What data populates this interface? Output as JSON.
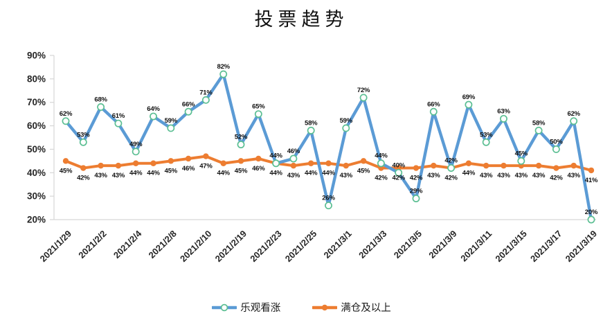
{
  "chart": {
    "title": "投票趋势"
  },
  "chart_data": {
    "type": "line",
    "title": "投票趋势",
    "xlabel": "",
    "ylabel": "",
    "ylim": [
      20,
      90
    ],
    "y_tick_labels": [
      "90%",
      "80%",
      "70%",
      "60%",
      "50%",
      "40%",
      "30%",
      "20%"
    ],
    "grid": false,
    "legend_position": "bottom",
    "axis_color": "#d6d6d6",
    "data_label_format": "{v}%",
    "x_tick_every": 2,
    "x_tick_labels": [
      "2021/1/29",
      "2021/2/2",
      "2021/2/4",
      "2021/2/8",
      "2021/2/10",
      "2021/2/19",
      "2021/2/23",
      "2021/2/25",
      "2021/3/1",
      "2021/3/3",
      "2021/3/5",
      "2021/3/9",
      "2021/3/11",
      "2021/3/15",
      "2021/3/17",
      "2021/3/19"
    ],
    "series": [
      {
        "name": "乐观看涨",
        "color": "#5b9bd5",
        "marker": "open-circle",
        "marker_fill": "#ffffff",
        "marker_stroke": "#5cbf93",
        "label_position": "above",
        "values": [
          62,
          53,
          68,
          61,
          49,
          64,
          59,
          66,
          71,
          82,
          52,
          65,
          44,
          46,
          58,
          26,
          59,
          72,
          44,
          40,
          29,
          66,
          42,
          69,
          53,
          63,
          45,
          58,
          50,
          62,
          20
        ]
      },
      {
        "name": "满仓及以上",
        "color": "#ed7d31",
        "marker": "filled-circle",
        "marker_fill": "#ed7d31",
        "marker_stroke": "#ed7d31",
        "label_position": "below",
        "values": [
          45,
          42,
          43,
          43,
          44,
          44,
          45,
          46,
          47,
          44,
          45,
          46,
          44,
          43,
          44,
          44,
          43,
          45,
          42,
          42,
          42,
          43,
          42,
          44,
          43,
          43,
          43,
          43,
          42,
          43,
          41
        ]
      }
    ]
  }
}
